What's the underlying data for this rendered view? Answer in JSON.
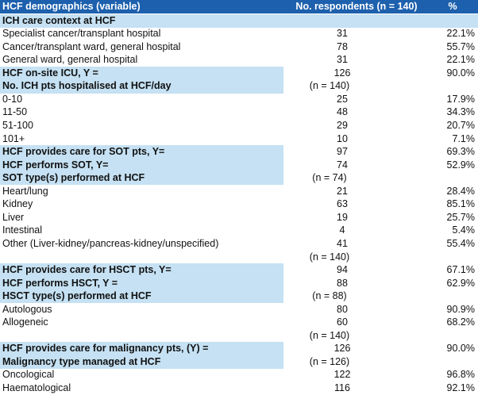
{
  "header": {
    "col1": "HCF demographics (variable)",
    "col2": "No. respondents (n = 140)",
    "col3": "%"
  },
  "rows": [
    {
      "kind": "section-full",
      "label": "ICH care context at HCF"
    },
    {
      "kind": "data",
      "label": "Specialist cancer/transplant hospital",
      "n": "31",
      "pct": "22.1%"
    },
    {
      "kind": "data",
      "label": "Cancer/transplant ward, general hospital",
      "n": "78",
      "pct": "55.7%"
    },
    {
      "kind": "data",
      "label": "General ward, general hospital",
      "n": "31",
      "pct": "22.1%"
    },
    {
      "kind": "section",
      "label": "HCF on-site ICU, Y =",
      "n": "126",
      "pct": "90.0%"
    },
    {
      "kind": "section",
      "label": "No. ICH pts hospitalised at HCF/day",
      "note": "(n = 140)"
    },
    {
      "kind": "data",
      "label": "0-10",
      "n": "25",
      "pct": "17.9%"
    },
    {
      "kind": "data",
      "label": "11-50",
      "n": "48",
      "pct": "34.3%"
    },
    {
      "kind": "data",
      "label": "51-100",
      "n": "29",
      "pct": "20.7%"
    },
    {
      "kind": "data",
      "label": "101+",
      "n": "10",
      "pct": "7.1%"
    },
    {
      "kind": "section",
      "label": "HCF provides care for SOT pts, Y=",
      "n": "97",
      "pct": "69.3%"
    },
    {
      "kind": "section",
      "label": "HCF performs SOT, Y=",
      "n": "74",
      "pct": "52.9%"
    },
    {
      "kind": "section",
      "label": "SOT type(s) performed at HCF",
      "note": "(n = 74)"
    },
    {
      "kind": "data",
      "label": "Heart/lung",
      "n": "21",
      "pct": "28.4%"
    },
    {
      "kind": "data",
      "label": "Kidney",
      "n": "63",
      "pct": "85.1%"
    },
    {
      "kind": "data",
      "label": "Liver",
      "n": "19",
      "pct": "25.7%"
    },
    {
      "kind": "data",
      "label": "Intestinal",
      "n": "4",
      "pct": "5.4%"
    },
    {
      "kind": "data",
      "label": "Other (Liver-kidney/pancreas-kidney/unspecified)",
      "n": "41",
      "pct": "55.4%"
    },
    {
      "kind": "note",
      "note": "(n = 140)"
    },
    {
      "kind": "section",
      "label": "HCF provides care for HSCT pts, Y=",
      "n": "94",
      "pct": "67.1%"
    },
    {
      "kind": "section",
      "label": "HCF performs HSCT, Y =",
      "n": "88",
      "pct": "62.9%"
    },
    {
      "kind": "section",
      "label": "HSCT type(s) performed at HCF",
      "note": "(n = 88)"
    },
    {
      "kind": "data",
      "label": "Autologous",
      "n": "80",
      "pct": "90.9%"
    },
    {
      "kind": "data",
      "label": "Allogeneic",
      "n": "60",
      "pct": "68.2%"
    },
    {
      "kind": "note",
      "note": "(n = 140)"
    },
    {
      "kind": "section",
      "label": "HCF provides care for malignancy pts, (Y) =",
      "n": "126",
      "pct": "90.0%"
    },
    {
      "kind": "section",
      "label": "Malignancy type managed at HCF",
      "note": "(n = 126)"
    },
    {
      "kind": "data",
      "label": "Oncological",
      "n": "122",
      "pct": "96.8%"
    },
    {
      "kind": "data",
      "label": "Haematological",
      "n": "116",
      "pct": "92.1%"
    }
  ]
}
